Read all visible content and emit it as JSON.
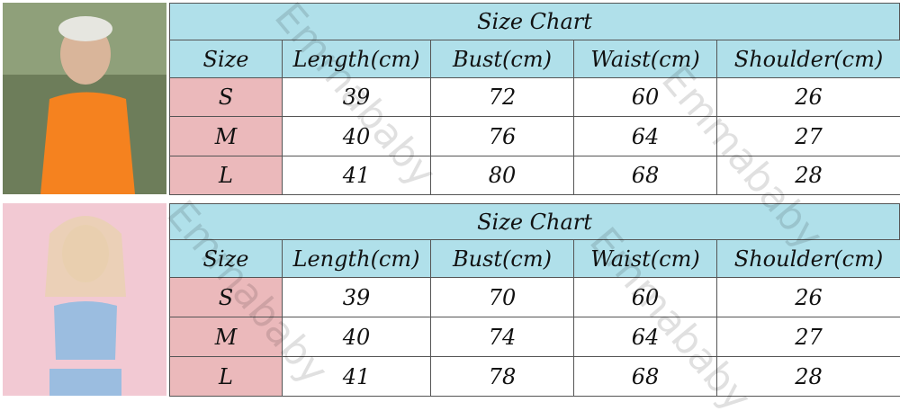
{
  "watermark": "Emmababy",
  "tables": [
    {
      "title": "Size Chart",
      "header": [
        "Size",
        "Length(cm)",
        "Bust(cm)",
        "Waist(cm)",
        "Shoulder(cm)"
      ],
      "rows": [
        [
          "S",
          39,
          72,
          60,
          26
        ],
        [
          "M",
          40,
          76,
          64,
          27
        ],
        [
          "L",
          41,
          80,
          68,
          28
        ]
      ]
    },
    {
      "title": "Size Chart",
      "header": [
        "Size",
        "Length(cm)",
        "Bust(cm)",
        "Waist(cm)",
        "Shoulder(cm)"
      ],
      "rows": [
        [
          "S",
          39,
          70,
          60,
          26
        ],
        [
          "M",
          40,
          74,
          64,
          27
        ],
        [
          "L",
          41,
          78,
          68,
          28
        ]
      ]
    }
  ]
}
